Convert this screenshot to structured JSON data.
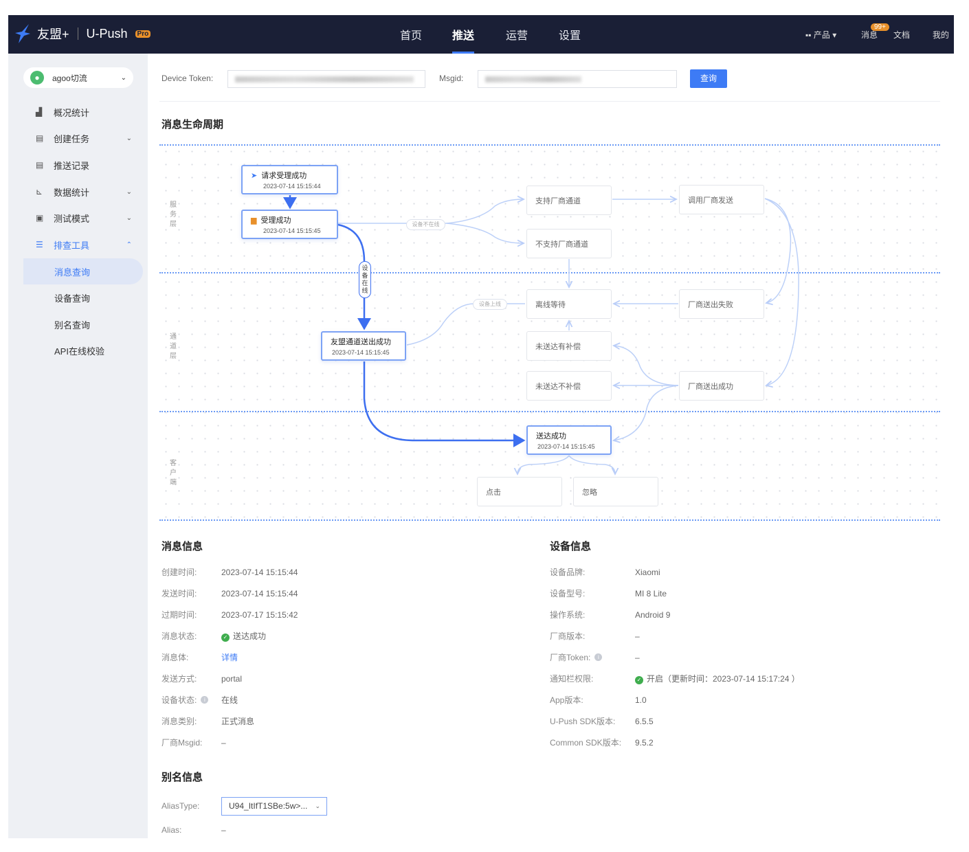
{
  "header": {
    "brand": "友盟+",
    "product": "U-Push",
    "badge": "Pro",
    "nav": [
      "首页",
      "推送",
      "运营",
      "设置"
    ],
    "active_nav": "推送",
    "right": {
      "products": "产品",
      "messages": "消息",
      "messages_badge": "99+",
      "docs": "文档",
      "mine": "我的"
    }
  },
  "sidebar": {
    "app": "agoo切流",
    "items": [
      {
        "label": "概况统计",
        "icon": "chart-icon"
      },
      {
        "label": "创建任务",
        "icon": "doc-icon",
        "chevron": "down"
      },
      {
        "label": "推送记录",
        "icon": "record-icon"
      },
      {
        "label": "数据统计",
        "icon": "line-chart-icon",
        "chevron": "down"
      },
      {
        "label": "测试模式",
        "icon": "monitor-icon",
        "chevron": "down"
      },
      {
        "label": "排查工具",
        "icon": "list-icon",
        "chevron": "up"
      }
    ],
    "subitems": [
      "消息查询",
      "设备查询",
      "别名查询",
      "API在线校验"
    ],
    "active_sub": "消息查询"
  },
  "search": {
    "device_token_label": "Device Token:",
    "msgid_label": "Msgid:",
    "query_button": "查询"
  },
  "lifecycle": {
    "title": "消息生命周期",
    "lanes": [
      "服务层",
      "通道层",
      "客户端"
    ],
    "nodes": {
      "request": {
        "title": "请求受理成功",
        "time": "2023-07-14 15:15:44"
      },
      "accepted": {
        "title": "受理成功",
        "time": "2023-07-14 15:15:45"
      },
      "umeng_sent": {
        "title": "友盟通道送出成功",
        "time": "2023-07-14 15:15:45"
      },
      "vendor_support": {
        "title": "支持厂商通道"
      },
      "vendor_nosupport": {
        "title": "不支持厂商通道"
      },
      "call_vendor": {
        "title": "调用厂商发送"
      },
      "offline_wait": {
        "title": "离线等待"
      },
      "vendor_fail": {
        "title": "厂商送出失败"
      },
      "undelivered_comp": {
        "title": "未送达有补偿"
      },
      "undelivered_nocomp": {
        "title": "未送达不补偿"
      },
      "vendor_success": {
        "title": "厂商送出成功"
      },
      "delivered": {
        "title": "送达成功",
        "time": "2023-07-14 15:15:45"
      },
      "click": {
        "title": "点击"
      },
      "ignore": {
        "title": "忽略"
      }
    },
    "edge_labels": {
      "offline": "设备不在线",
      "online": "设备在线",
      "came_online": "设备上线"
    }
  },
  "message_info": {
    "title": "消息信息",
    "rows": [
      {
        "label": "创建时间:",
        "value": "2023-07-14 15:15:44"
      },
      {
        "label": "发送时间:",
        "value": "2023-07-14 15:15:44"
      },
      {
        "label": "过期时间:",
        "value": "2023-07-17 15:15:42"
      },
      {
        "label": "消息状态:",
        "value": "送达成功",
        "status": "success"
      },
      {
        "label": "消息体:",
        "value": "详情",
        "link": true
      },
      {
        "label": "发送方式:",
        "value": "portal"
      },
      {
        "label": "设备状态:",
        "value": "在线",
        "info": true
      },
      {
        "label": "消息类别:",
        "value": "正式消息"
      },
      {
        "label": "厂商Msgid:",
        "value": "–"
      }
    ]
  },
  "device_info": {
    "title": "设备信息",
    "rows": [
      {
        "label": "设备品牌:",
        "value": "Xiaomi"
      },
      {
        "label": "设备型号:",
        "value": "MI 8 Lite"
      },
      {
        "label": "操作系统:",
        "value": "Android 9"
      },
      {
        "label": "厂商版本:",
        "value": "–"
      },
      {
        "label": "厂商Token:",
        "value": "–",
        "info": true
      },
      {
        "label": "通知栏权限:",
        "value": "开启（更新时间：2023-07-14 15:17:24 ）",
        "status": "success"
      },
      {
        "label": "App版本:",
        "value": "1.0"
      },
      {
        "label": "U-Push SDK版本:",
        "value": "6.5.5"
      },
      {
        "label": "Common SDK版本:",
        "value": "9.5.2"
      }
    ]
  },
  "alias_info": {
    "title": "别名信息",
    "alias_type_label": "AliasType:",
    "alias_type_value": "U94_ItIfT1SBe:5w>...",
    "alias_label": "Alias:",
    "alias_value": "–"
  },
  "colors": {
    "header_bg": "#1a1f36",
    "accent": "#3d7bf5",
    "success": "#3fad4e",
    "badge": "#e8902a"
  }
}
